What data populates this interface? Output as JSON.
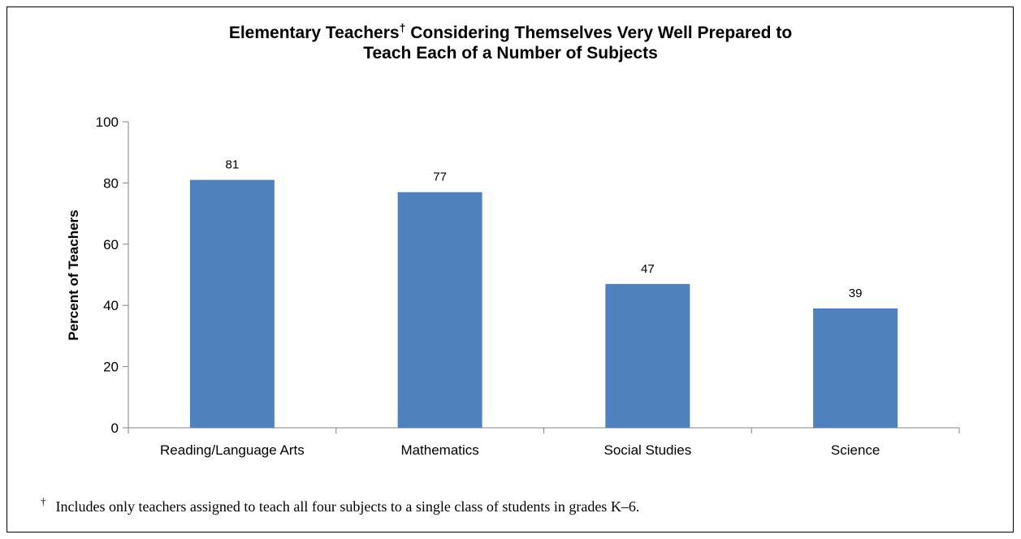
{
  "chart_data": {
    "type": "bar",
    "title_line1_prefix": "Elementary Teachers",
    "title_line1_suffix": " Considering Themselves Very Well Prepared to",
    "title_line2": "Teach Each of a Number of Subjects",
    "dagger": "†",
    "categories": [
      "Reading/Language Arts",
      "Mathematics",
      "Social Studies",
      "Science"
    ],
    "values": [
      81,
      77,
      47,
      39
    ],
    "ylabel": "Percent of Teachers",
    "xlabel": "",
    "ylim": [
      0,
      100
    ],
    "yticks": [
      0,
      20,
      40,
      60,
      80,
      100
    ],
    "grid": false,
    "legend": "none",
    "bar_color": "#4F81BD",
    "data_labels": true
  },
  "footnote": {
    "symbol": "†",
    "text": "Includes only teachers assigned to teach all four subjects to a single class of students in grades K–6."
  }
}
